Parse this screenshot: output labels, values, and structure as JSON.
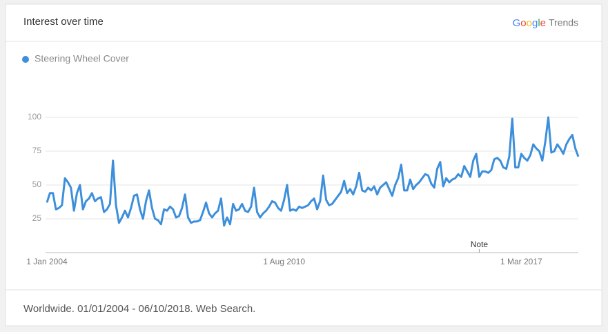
{
  "header": {
    "title": "Interest over time",
    "brand": "Google",
    "product": "Trends"
  },
  "footer": "Worldwide. 01/01/2004 - 06/10/2018. Web Search.",
  "chart_data": {
    "type": "line",
    "categories": [
      "1 Jan 2004",
      null,
      null,
      null,
      null,
      null,
      null,
      null,
      null,
      null,
      null,
      null,
      null,
      null,
      null,
      null,
      null,
      null,
      null,
      null,
      null,
      null,
      null,
      null,
      null,
      null,
      null,
      null,
      null,
      null,
      null,
      null,
      null,
      null,
      null,
      null,
      null,
      null,
      null,
      null,
      null,
      null,
      null,
      null,
      null,
      null,
      null,
      null,
      null,
      null,
      null,
      null,
      null,
      null,
      null,
      null,
      null,
      null,
      null,
      null,
      null,
      null,
      null,
      null,
      null,
      null,
      null,
      null,
      null,
      null,
      null,
      null,
      null,
      null,
      null,
      null,
      null,
      null,
      null,
      "1 Aug 2010",
      null,
      null,
      null,
      null,
      null,
      null,
      null,
      null,
      null,
      null,
      null,
      null,
      null,
      null,
      null,
      null,
      null,
      null,
      null,
      null,
      null,
      null,
      null,
      null,
      null,
      null,
      null,
      null,
      null,
      null,
      null,
      null,
      null,
      null,
      null,
      null,
      null,
      null,
      null,
      null,
      null,
      null,
      null,
      null,
      null,
      null,
      null,
      null,
      null,
      null,
      null,
      null,
      null,
      null,
      null,
      null,
      null,
      null,
      null,
      null,
      null,
      null,
      null,
      null,
      null,
      null,
      null,
      null,
      null,
      null,
      null,
      null,
      null,
      null,
      null,
      null,
      null,
      null,
      "1 Mar 2017",
      null,
      null,
      null,
      null,
      null,
      null,
      null,
      null,
      null,
      null,
      null,
      null,
      null,
      null,
      null,
      null,
      null,
      null,
      null
    ],
    "series": [
      {
        "name": "Steering Wheel Cover",
        "color": "#3d8fdb",
        "values": [
          37,
          44,
          44,
          32,
          33,
          35,
          55,
          52,
          48,
          31,
          44,
          50,
          32,
          38,
          40,
          44,
          38,
          40,
          41,
          30,
          32,
          36,
          68,
          35,
          22,
          26,
          31,
          26,
          33,
          42,
          43,
          32,
          25,
          38,
          46,
          33,
          25,
          24,
          21,
          32,
          31,
          34,
          32,
          26,
          27,
          33,
          43,
          26,
          22,
          23,
          23,
          24,
          30,
          37,
          29,
          26,
          29,
          31,
          40,
          20,
          26,
          21,
          36,
          31,
          32,
          36,
          31,
          30,
          34,
          48,
          30,
          26,
          29,
          31,
          34,
          38,
          37,
          33,
          31,
          39,
          50,
          31,
          32,
          31,
          34,
          33,
          34,
          35,
          38,
          40,
          32,
          38,
          57,
          39,
          35,
          36,
          39,
          42,
          45,
          53,
          44,
          47,
          43,
          49,
          59,
          46,
          45,
          48,
          46,
          49,
          43,
          48,
          50,
          52,
          47,
          42,
          50,
          55,
          65,
          46,
          46,
          54,
          47,
          50,
          52,
          55,
          58,
          57,
          51,
          48,
          62,
          67,
          49,
          55,
          52,
          54,
          55,
          58,
          56,
          64,
          60,
          56,
          68,
          73,
          56,
          60,
          60,
          59,
          61,
          69,
          70,
          68,
          63,
          62,
          71,
          99,
          63,
          63,
          73,
          70,
          68,
          72,
          80,
          77,
          75,
          68,
          82,
          100,
          74,
          75,
          80,
          77,
          73,
          80,
          84,
          87,
          77,
          71
        ]
      }
    ],
    "ylim": [
      0,
      100
    ],
    "yticks": [
      25,
      50,
      75,
      100
    ],
    "grid": true,
    "annotations": [
      "Note"
    ]
  }
}
